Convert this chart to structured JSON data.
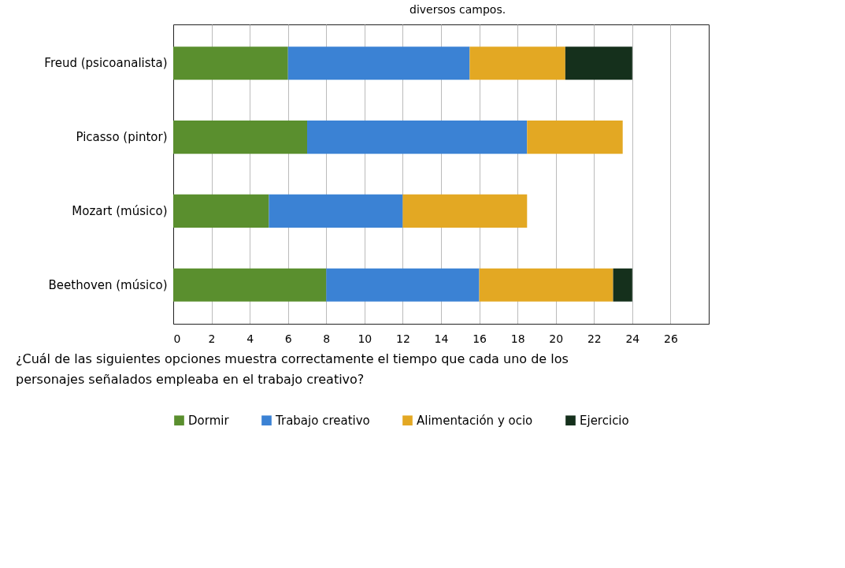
{
  "chart_data": {
    "type": "bar",
    "orientation": "horizontal",
    "stacked": true,
    "categories": [
      "Freud (psicoanalista)",
      "Picasso (pintor)",
      "Mozart (músico)",
      "Beethoven (músico)"
    ],
    "series": [
      {
        "name": "Dormir",
        "color": "#5a8f2e",
        "values": [
          6,
          7,
          5,
          8
        ]
      },
      {
        "name": "Trabajo creativo",
        "color": "#3b82d4",
        "values": [
          9.5,
          11.5,
          7,
          8
        ]
      },
      {
        "name": "Alimentación y ocio",
        "color": "#e3a823",
        "values": [
          5,
          5,
          6.5,
          7
        ]
      },
      {
        "name": "Ejercicio",
        "color": "#15301c",
        "values": [
          3.5,
          null,
          null,
          1
        ]
      }
    ],
    "xlim": [
      0,
      28
    ],
    "xticks": [
      0,
      2,
      4,
      6,
      8,
      10,
      12,
      14,
      16,
      18,
      20,
      22,
      24,
      26
    ],
    "grid": "x",
    "legend": "bottom",
    "annotations": [
      "diversos campos.",
      "¿Cuál de las siguientes opciones muestra correctamente el tiempo que cada uno de los personajes señalados empleaba en el trabajo creativo?"
    ]
  }
}
